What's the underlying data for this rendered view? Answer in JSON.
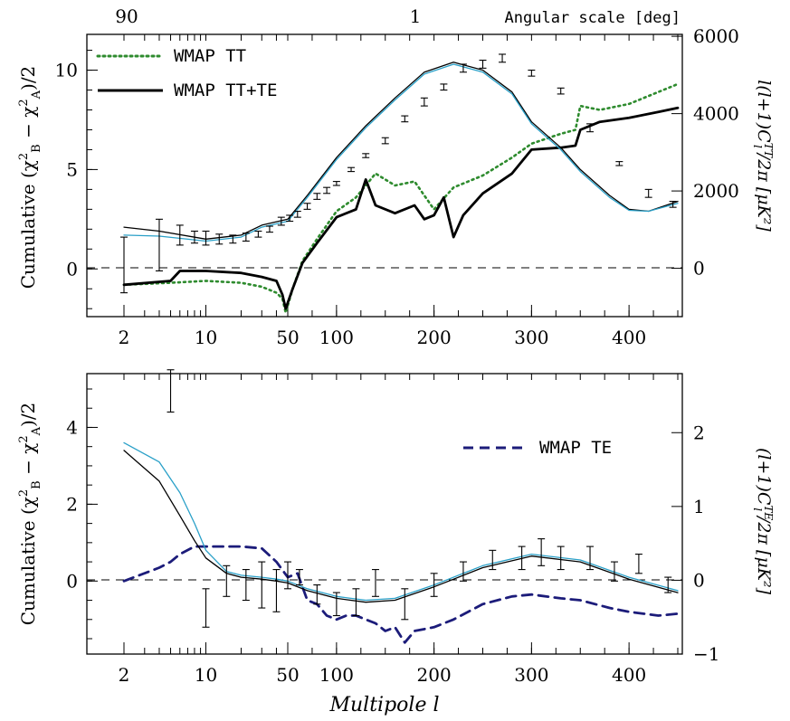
{
  "colors": {
    "tt": "#2e8b2e",
    "ttte": "#000000",
    "te": "#1c1c7a",
    "model_a": "#2aa0c8",
    "model_b": "#000000"
  },
  "top_axis": {
    "label": "Angular scale [deg]",
    "ticks": [
      {
        "ell": 2,
        "label": "90"
      },
      {
        "ell": 180,
        "label": "1"
      }
    ]
  },
  "x_axis": {
    "label": "Multipole l",
    "ticks": [
      {
        "ell": 2,
        "label": "2"
      },
      {
        "ell": 10,
        "label": "10"
      },
      {
        "ell": 50,
        "label": "50"
      },
      {
        "ell": 100,
        "label": "100"
      },
      {
        "ell": 200,
        "label": "200"
      },
      {
        "ell": 300,
        "label": "300"
      },
      {
        "ell": 400,
        "label": "400"
      }
    ]
  },
  "chart_data": [
    {
      "type": "line",
      "panel": "top",
      "xlabel": "Multipole l",
      "ylabel": "Cumulative (χ²_B − χ²_A)/2",
      "y2label": "l(l+1)C_l^TT/2π [μK²]",
      "xlim": [
        1.5,
        450
      ],
      "ylim": [
        -2.4,
        11.8
      ],
      "y2lim": [
        -1250,
        6050
      ],
      "yticks": [
        "0",
        "5",
        "10"
      ],
      "y2ticks": [
        "0",
        "2000",
        "4000",
        "6000"
      ],
      "legend": [
        "WMAP TT",
        "WMAP TT+TE"
      ],
      "legend_position": "top-left",
      "series": [
        {
          "name": "WMAP TT",
          "style": "dotted",
          "x": [
            2,
            5,
            10,
            20,
            30,
            40,
            45,
            48,
            55,
            65,
            80,
            100,
            120,
            140,
            160,
            180,
            200,
            220,
            250,
            280,
            300,
            330,
            345,
            350,
            370,
            400,
            430,
            450
          ],
          "y": [
            -0.8,
            -0.7,
            -0.6,
            -0.7,
            -0.9,
            -1.2,
            -1.5,
            -2.2,
            -1.0,
            0.4,
            1.5,
            2.9,
            3.6,
            4.8,
            4.2,
            4.4,
            3.0,
            4.1,
            4.7,
            5.6,
            6.3,
            6.8,
            7.0,
            8.2,
            8.0,
            8.3,
            8.9,
            9.3
          ]
        },
        {
          "name": "WMAP TT+TE",
          "style": "solid",
          "x": [
            2,
            5,
            6,
            10,
            20,
            30,
            40,
            45,
            48,
            55,
            65,
            80,
            100,
            120,
            130,
            140,
            160,
            180,
            190,
            200,
            210,
            220,
            230,
            250,
            280,
            300,
            330,
            345,
            350,
            370,
            400,
            430,
            450
          ],
          "y": [
            -0.8,
            -0.6,
            -0.1,
            -0.1,
            -0.2,
            -0.4,
            -0.6,
            -1.3,
            -2.0,
            -1.0,
            0.3,
            1.3,
            2.6,
            3.0,
            4.5,
            3.2,
            2.8,
            3.2,
            2.5,
            2.7,
            3.6,
            1.6,
            2.7,
            3.8,
            4.8,
            6.0,
            6.1,
            6.2,
            7.0,
            7.4,
            7.6,
            7.9,
            8.1
          ]
        },
        {
          "name": "",
          "style": "solid-thin",
          "x": [
            2,
            4,
            10,
            20,
            30,
            50,
            70,
            100,
            130,
            160,
            190,
            220,
            250,
            280,
            300,
            330,
            350,
            380,
            400,
            420,
            450
          ],
          "y": [
            2.1,
            1.9,
            1.5,
            1.7,
            2.2,
            2.5,
            3.7,
            5.6,
            7.2,
            8.6,
            9.9,
            10.4,
            10.0,
            8.9,
            7.4,
            6.1,
            5.0,
            3.7,
            3.0,
            2.9,
            3.4
          ]
        },
        {
          "name": "",
          "style": "solid-thin",
          "x": [
            2,
            4,
            10,
            20,
            30,
            50,
            70,
            100,
            130,
            160,
            190,
            220,
            250,
            280,
            300,
            330,
            350,
            380,
            400,
            420,
            450
          ],
          "y": [
            1.7,
            1.65,
            1.4,
            1.6,
            2.1,
            2.4,
            3.6,
            5.5,
            7.1,
            8.5,
            9.8,
            10.3,
            9.9,
            8.8,
            7.3,
            6.0,
            4.9,
            3.6,
            2.95,
            2.9,
            3.3
          ]
        }
      ],
      "error_bars": [
        {
          "x": 2,
          "lo": -1.2,
          "hi": 1.6
        },
        {
          "x": 4,
          "lo": -0.1,
          "hi": 2.5
        },
        {
          "x": 6,
          "lo": 1.2,
          "hi": 2.2
        },
        {
          "x": 8,
          "lo": 1.3,
          "hi": 1.9
        },
        {
          "x": 10,
          "lo": 1.2,
          "hi": 1.9
        },
        {
          "x": 13,
          "lo": 1.25,
          "hi": 1.75
        },
        {
          "x": 17,
          "lo": 1.3,
          "hi": 1.7
        },
        {
          "x": 22,
          "lo": 1.4,
          "hi": 1.8
        },
        {
          "x": 28,
          "lo": 1.6,
          "hi": 1.9
        },
        {
          "x": 35,
          "lo": 1.85,
          "hi": 2.15
        },
        {
          "x": 44,
          "lo": 2.2,
          "hi": 2.6
        },
        {
          "x": 52,
          "lo": 2.4,
          "hi": 2.7
        },
        {
          "x": 60,
          "lo": 2.6,
          "hi": 2.9
        },
        {
          "x": 70,
          "lo": 3.0,
          "hi": 3.3
        },
        {
          "x": 80,
          "lo": 3.5,
          "hi": 3.8
        },
        {
          "x": 90,
          "lo": 3.8,
          "hi": 4.1
        },
        {
          "x": 100,
          "lo": 4.2,
          "hi": 4.4
        },
        {
          "x": 115,
          "lo": 4.9,
          "hi": 5.1
        },
        {
          "x": 130,
          "lo": 5.6,
          "hi": 5.8
        },
        {
          "x": 150,
          "lo": 6.3,
          "hi": 6.6
        },
        {
          "x": 170,
          "lo": 7.4,
          "hi": 7.7
        },
        {
          "x": 190,
          "lo": 8.2,
          "hi": 8.6
        },
        {
          "x": 210,
          "lo": 9.0,
          "hi": 9.3
        },
        {
          "x": 230,
          "lo": 9.9,
          "hi": 10.3
        },
        {
          "x": 250,
          "lo": 10.1,
          "hi": 10.5
        },
        {
          "x": 270,
          "lo": 10.4,
          "hi": 10.8
        },
        {
          "x": 300,
          "lo": 9.7,
          "hi": 10.0
        },
        {
          "x": 330,
          "lo": 8.8,
          "hi": 9.1
        },
        {
          "x": 360,
          "lo": 6.9,
          "hi": 7.3
        },
        {
          "x": 390,
          "lo": 5.2,
          "hi": 5.4
        },
        {
          "x": 420,
          "lo": 3.6,
          "hi": 4.0
        },
        {
          "x": 445,
          "lo": 3.1,
          "hi": 3.4
        }
      ]
    },
    {
      "type": "line",
      "panel": "bottom",
      "xlabel": "Multipole l",
      "ylabel": "Cumulative (χ²_B − χ²_A)/2",
      "y2label": "(l+1)C_l^TE/2π [μK²]",
      "xlim": [
        1.5,
        450
      ],
      "ylim": [
        -1.9,
        5.4
      ],
      "y2lim": [
        -1,
        2.8
      ],
      "yticks": [
        "0",
        "2",
        "4"
      ],
      "y2ticks": [
        "−1",
        "0",
        "1",
        "2"
      ],
      "legend": [
        "WMAP TE"
      ],
      "legend_position": "top-right",
      "series": [
        {
          "name": "WMAP TE",
          "style": "dashed",
          "x": [
            2,
            4,
            5,
            6,
            8,
            10,
            20,
            30,
            40,
            50,
            60,
            70,
            80,
            90,
            100,
            110,
            120,
            130,
            140,
            150,
            160,
            170,
            180,
            200,
            220,
            250,
            280,
            300,
            330,
            350,
            380,
            400,
            430,
            450
          ],
          "y": [
            0.0,
            0.35,
            0.5,
            0.7,
            0.9,
            0.9,
            0.9,
            0.85,
            0.5,
            0.1,
            0.2,
            -0.5,
            -0.6,
            -0.9,
            -1.0,
            -0.9,
            -0.9,
            -1.0,
            -1.1,
            -1.3,
            -1.2,
            -1.6,
            -1.3,
            -1.2,
            -1.0,
            -0.6,
            -0.4,
            -0.35,
            -0.45,
            -0.5,
            -0.7,
            -0.8,
            -0.9,
            -0.85
          ]
        },
        {
          "name": "",
          "style": "solid-thin",
          "x": [
            2,
            4,
            6,
            8,
            10,
            15,
            20,
            30,
            40,
            50,
            70,
            100,
            130,
            160,
            200,
            250,
            300,
            350,
            400,
            450
          ],
          "y": [
            3.6,
            3.1,
            2.3,
            1.5,
            0.8,
            0.25,
            0.15,
            0.1,
            0.05,
            0.0,
            -0.2,
            -0.4,
            -0.5,
            -0.45,
            -0.1,
            0.4,
            0.7,
            0.55,
            0.1,
            -0.25
          ]
        },
        {
          "name": "",
          "style": "solid-thin",
          "x": [
            2,
            4,
            6,
            8,
            10,
            15,
            20,
            30,
            40,
            50,
            70,
            100,
            130,
            160,
            200,
            250,
            300,
            350,
            400,
            450
          ],
          "y": [
            3.4,
            2.6,
            1.7,
            1.05,
            0.6,
            0.2,
            0.1,
            0.05,
            0.0,
            -0.05,
            -0.25,
            -0.45,
            -0.55,
            -0.5,
            -0.15,
            0.35,
            0.65,
            0.5,
            0.05,
            -0.3
          ]
        }
      ],
      "error_bars": [
        {
          "x": 5,
          "lo": 4.4,
          "hi": 5.5
        },
        {
          "x": 10,
          "lo": -1.2,
          "hi": -0.2
        },
        {
          "x": 15,
          "lo": -0.4,
          "hi": 0.4
        },
        {
          "x": 22,
          "lo": -0.5,
          "hi": 0.3
        },
        {
          "x": 30,
          "lo": -0.7,
          "hi": 0.5
        },
        {
          "x": 40,
          "lo": -0.8,
          "hi": 0.3
        },
        {
          "x": 50,
          "lo": -0.2,
          "hi": 0.5
        },
        {
          "x": 62,
          "lo": -0.1,
          "hi": 0.3
        },
        {
          "x": 80,
          "lo": -0.6,
          "hi": -0.1
        },
        {
          "x": 100,
          "lo": -0.9,
          "hi": -0.3
        },
        {
          "x": 120,
          "lo": -0.9,
          "hi": -0.2
        },
        {
          "x": 140,
          "lo": -0.4,
          "hi": 0.3
        },
        {
          "x": 170,
          "lo": -1.0,
          "hi": -0.2
        },
        {
          "x": 200,
          "lo": -0.4,
          "hi": 0.2
        },
        {
          "x": 230,
          "lo": 0.0,
          "hi": 0.5
        },
        {
          "x": 260,
          "lo": 0.3,
          "hi": 0.8
        },
        {
          "x": 290,
          "lo": 0.3,
          "hi": 0.9
        },
        {
          "x": 310,
          "lo": 0.4,
          "hi": 1.1
        },
        {
          "x": 330,
          "lo": 0.3,
          "hi": 0.9
        },
        {
          "x": 360,
          "lo": 0.3,
          "hi": 0.9
        },
        {
          "x": 385,
          "lo": 0.0,
          "hi": 0.5
        },
        {
          "x": 410,
          "lo": 0.2,
          "hi": 0.7
        },
        {
          "x": 440,
          "lo": -0.3,
          "hi": 0.1
        }
      ]
    }
  ]
}
